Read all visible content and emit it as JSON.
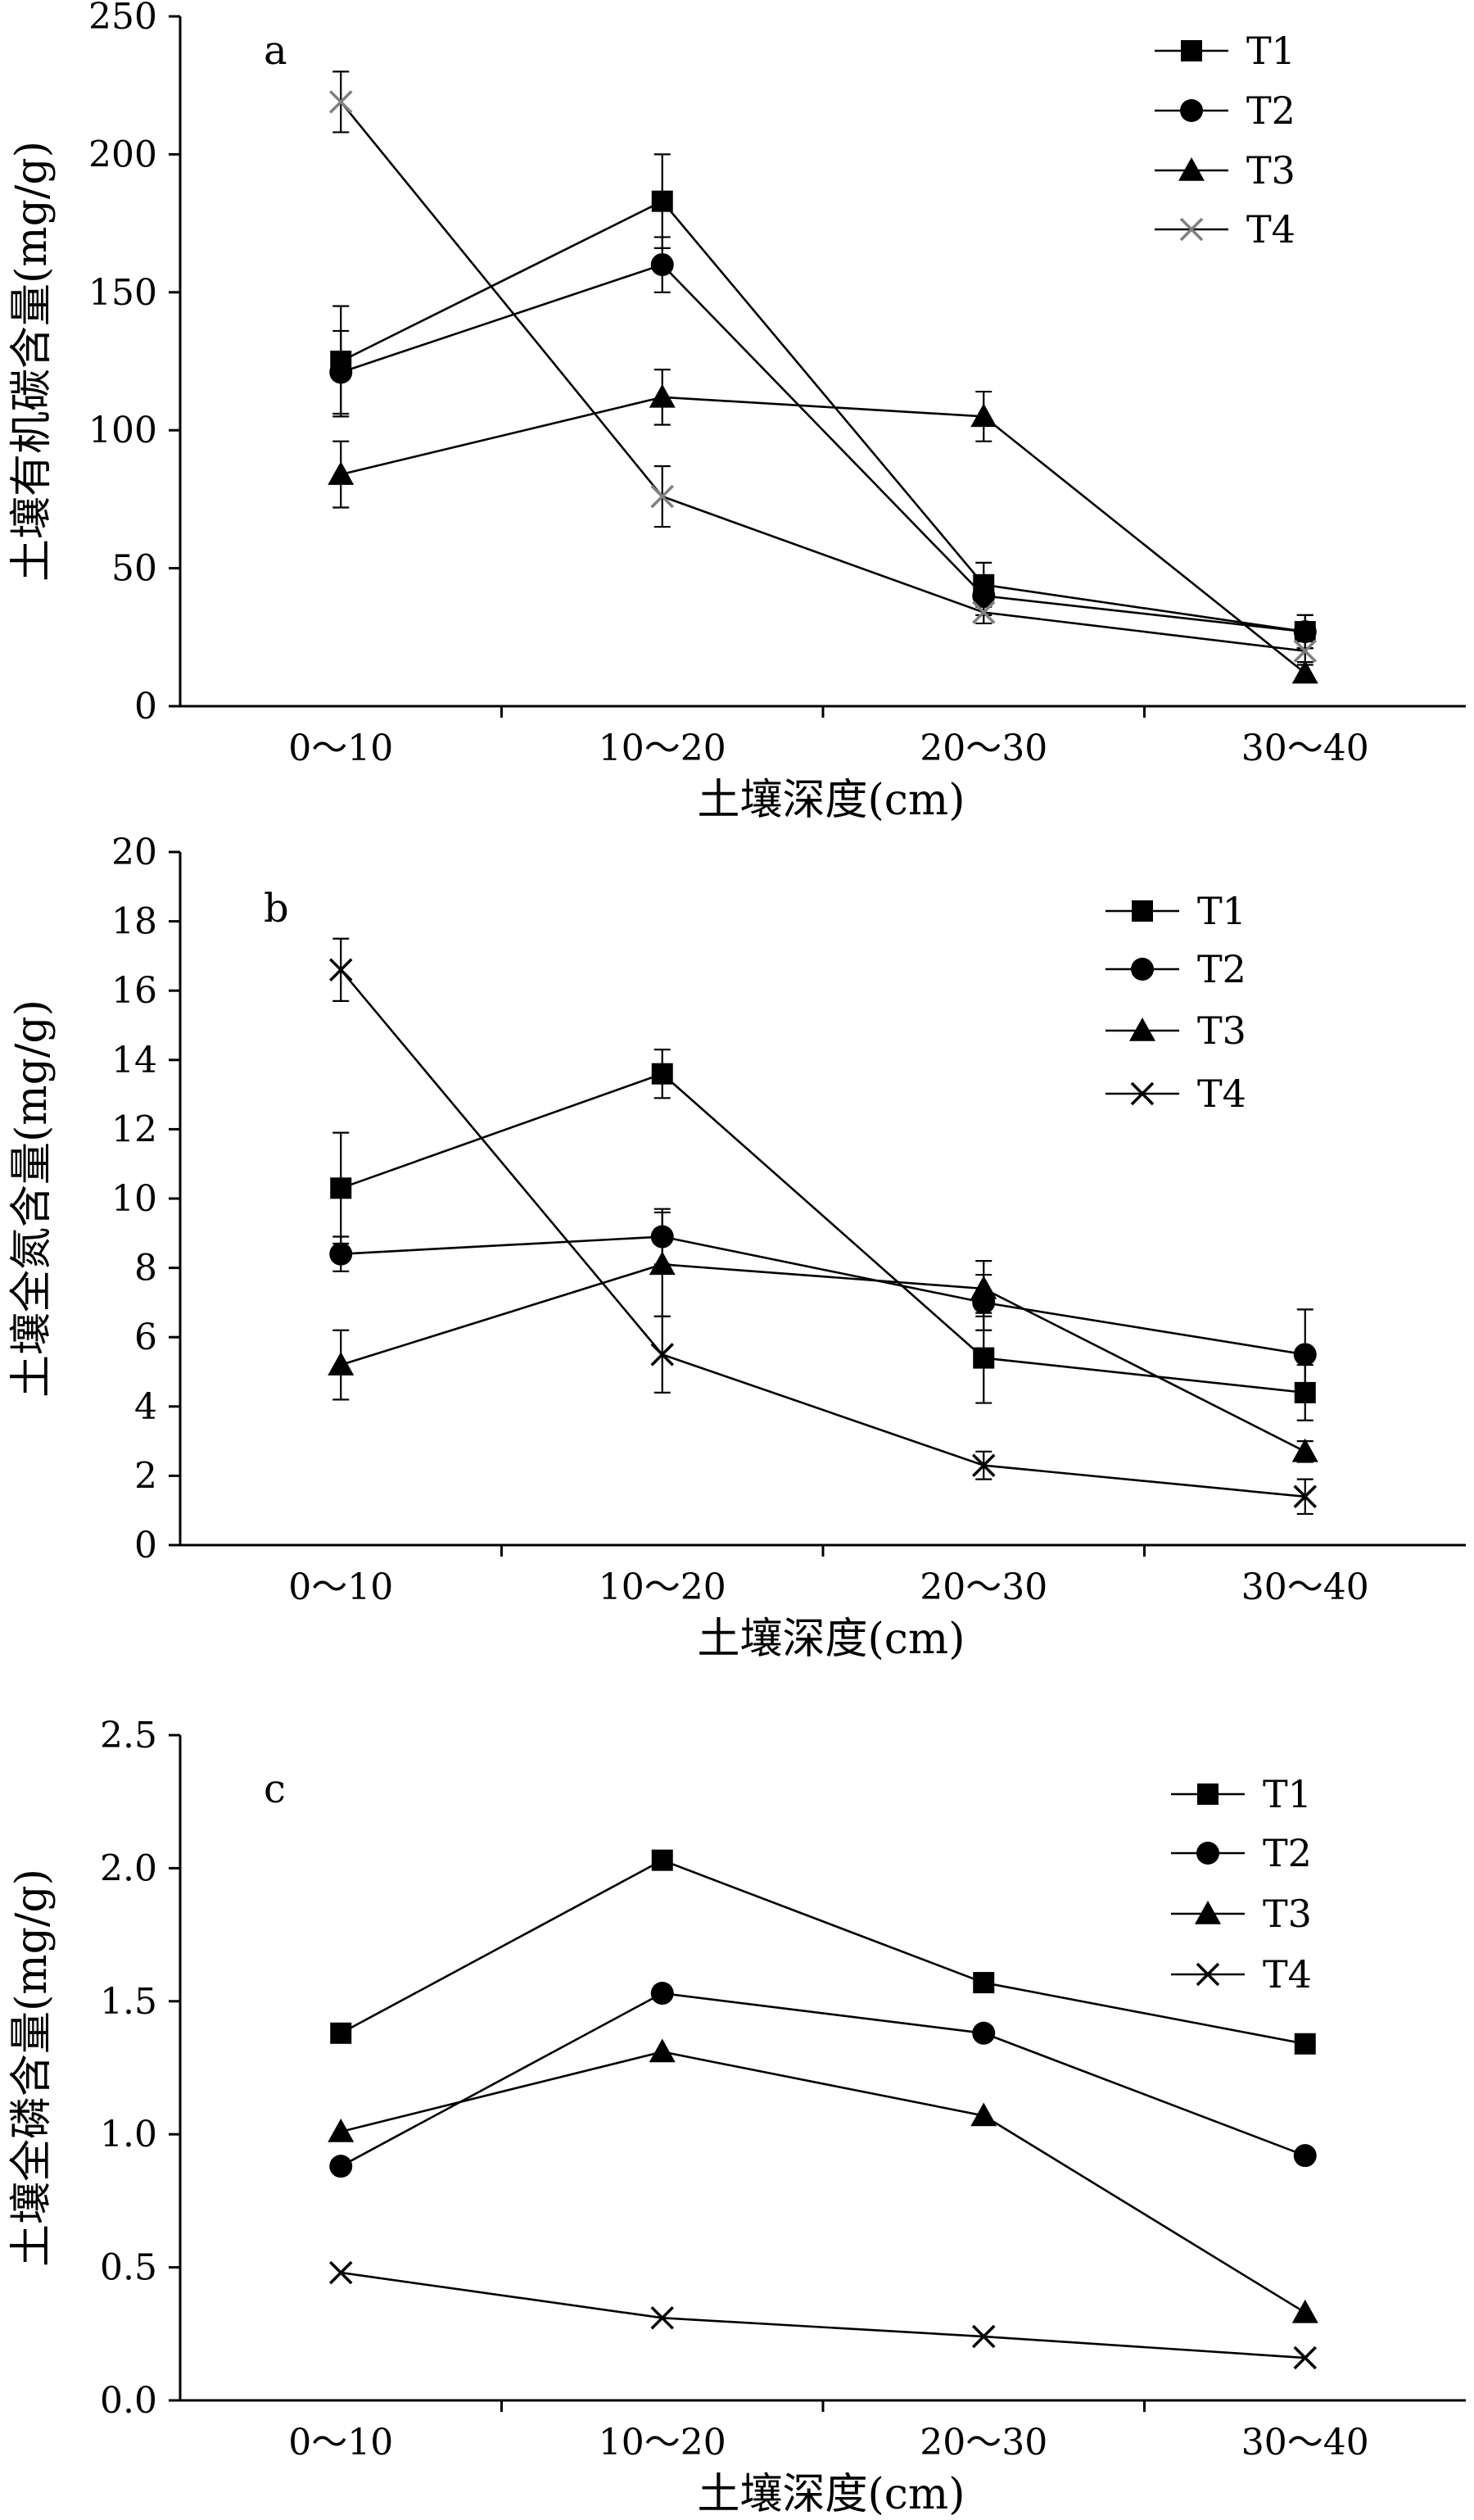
{
  "chart_data": [
    {
      "type": "line",
      "panel_label": "a",
      "categories": [
        "0～10",
        "10～20",
        "20～30",
        "30～40"
      ],
      "xlabel": "土壤深度(cm)",
      "ylabel": "土壤有机碳含量(mg/g)",
      "ylim": [
        0,
        250
      ],
      "yticks": [
        "0",
        "50",
        "100",
        "150",
        "200",
        "250"
      ],
      "error_bars": true,
      "grid": false,
      "legend_position": "top-right",
      "series": [
        {
          "name": "T1",
          "marker": "square",
          "color": "#000000",
          "values": [
            125,
            183,
            44,
            27
          ],
          "errors": [
            20,
            17,
            8,
            6
          ]
        },
        {
          "name": "T2",
          "marker": "circle",
          "color": "#000000",
          "values": [
            121,
            160,
            40,
            27
          ],
          "errors": [
            15,
            10,
            7,
            6
          ]
        },
        {
          "name": "T3",
          "marker": "triangle",
          "color": "#000000",
          "values": [
            84,
            112,
            105,
            12
          ],
          "errors": [
            12,
            10,
            9,
            3
          ]
        },
        {
          "name": "T4",
          "marker": "x",
          "color": "#808080",
          "values": [
            219,
            76,
            34,
            20
          ],
          "errors": [
            11,
            11,
            4,
            4
          ]
        }
      ]
    },
    {
      "type": "line",
      "panel_label": "b",
      "categories": [
        "0～10",
        "10～20",
        "20～30",
        "30～40"
      ],
      "xlabel": "土壤深度(cm)",
      "ylabel": "土壤全氮含量(mg/g)",
      "ylim": [
        0,
        20
      ],
      "yticks": [
        "0",
        "2",
        "4",
        "6",
        "8",
        "10",
        "12",
        "14",
        "16",
        "18",
        "20"
      ],
      "error_bars": true,
      "grid": false,
      "legend_position": "top-right",
      "series": [
        {
          "name": "T1",
          "marker": "square",
          "color": "#000000",
          "values": [
            10.3,
            13.6,
            5.4,
            4.4
          ],
          "errors": [
            1.6,
            0.7,
            1.3,
            0.8
          ]
        },
        {
          "name": "T2",
          "marker": "circle",
          "color": "#000000",
          "values": [
            8.4,
            8.9,
            7.0,
            5.5
          ],
          "errors": [
            0.5,
            0.8,
            0.8,
            1.3
          ]
        },
        {
          "name": "T3",
          "marker": "triangle",
          "color": "#000000",
          "values": [
            5.2,
            8.1,
            7.4,
            2.7
          ],
          "errors": [
            1.0,
            1.5,
            0.8,
            0.3
          ]
        },
        {
          "name": "T4",
          "marker": "x",
          "color": "#000000",
          "values": [
            16.6,
            5.5,
            2.3,
            1.4
          ],
          "errors": [
            0.9,
            1.1,
            0.4,
            0.5
          ]
        }
      ]
    },
    {
      "type": "line",
      "panel_label": "c",
      "categories": [
        "0～10",
        "10～20",
        "20～30",
        "30～40"
      ],
      "xlabel": "土壤深度(cm)",
      "ylabel": "土壤全磷含量(mg/g)",
      "ylim": [
        0,
        2.5
      ],
      "yticks": [
        "0.0",
        "0.5",
        "1.0",
        "1.5",
        "2.0",
        "2.5"
      ],
      "error_bars": false,
      "grid": false,
      "legend_position": "top-right",
      "series": [
        {
          "name": "T1",
          "marker": "square",
          "color": "#000000",
          "values": [
            1.38,
            2.03,
            1.57,
            1.34
          ]
        },
        {
          "name": "T2",
          "marker": "circle",
          "color": "#000000",
          "values": [
            0.88,
            1.53,
            1.38,
            0.92
          ]
        },
        {
          "name": "T3",
          "marker": "triangle",
          "color": "#000000",
          "values": [
            1.01,
            1.31,
            1.07,
            0.33
          ]
        },
        {
          "name": "T4",
          "marker": "x",
          "color": "#000000",
          "values": [
            0.48,
            0.31,
            0.24,
            0.16
          ]
        }
      ]
    }
  ]
}
